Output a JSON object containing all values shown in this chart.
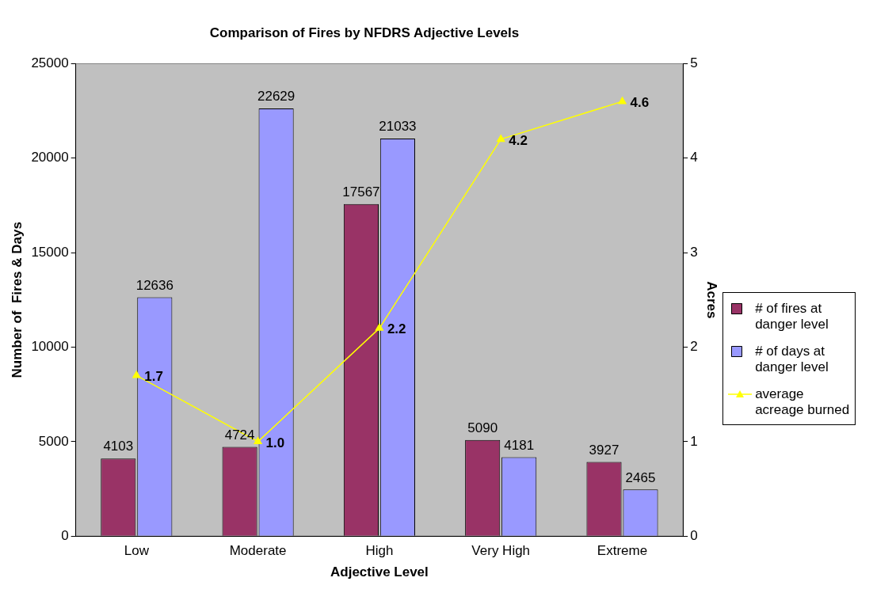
{
  "chart_data": {
    "type": "bar",
    "title": "Comparison of Fires by NFDRS Adjective Levels",
    "xlabel": "Adjective Level",
    "ylabel": "Number of  Fires & Days",
    "y2label": "Acres",
    "categories": [
      "Low",
      "Moderate",
      "High",
      "Very High",
      "Extreme"
    ],
    "series": [
      {
        "name": "# of fires at danger level",
        "color": "#993366",
        "values": [
          4103,
          4724,
          17567,
          5090,
          3927
        ]
      },
      {
        "name": "# of days at danger level",
        "color": "#9999ff",
        "values": [
          12636,
          22629,
          21033,
          4181,
          2465
        ]
      },
      {
        "name": "average acreage burned",
        "type": "line",
        "axis": "y2",
        "color": "#ffff00",
        "marker": "triangle",
        "values": [
          1.7,
          1.0,
          2.2,
          4.2,
          4.6
        ],
        "value_labels": [
          "1.7",
          "1.0",
          "2.2",
          "4.2",
          "4.6"
        ]
      }
    ],
    "ylim": [
      0,
      25000
    ],
    "yticks": [
      0,
      5000,
      10000,
      15000,
      20000,
      25000
    ],
    "y2lim": [
      0,
      5
    ],
    "y2ticks": [
      0,
      1,
      2,
      3,
      4,
      5
    ],
    "data_labels": true,
    "grid": false,
    "legend": "right"
  }
}
